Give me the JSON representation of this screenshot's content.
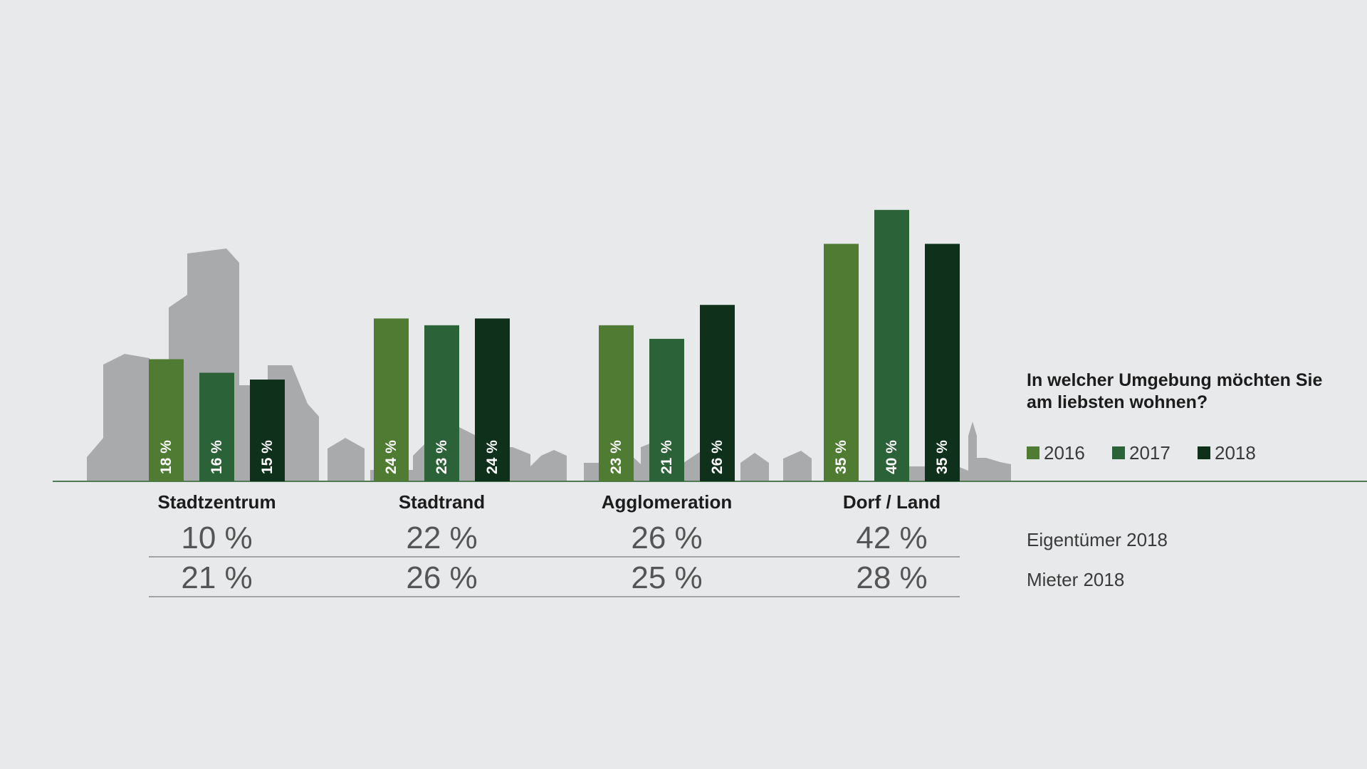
{
  "chart_data": {
    "type": "bar",
    "question": [
      "In welcher Umgebung möchten Sie",
      "am liebsten wohnen?"
    ],
    "categories": [
      "Stadtzentrum",
      "Stadtrand",
      "Agglomeration",
      "Dorf / Land"
    ],
    "series": [
      {
        "name": "2016",
        "color": "#4f7b33",
        "values": [
          18,
          24,
          23,
          35
        ],
        "labels": [
          "18 %",
          "24 %",
          "23 %",
          "35 %"
        ]
      },
      {
        "name": "2017",
        "color": "#2b6238",
        "values": [
          16,
          23,
          21,
          40
        ],
        "labels": [
          "16 %",
          "23 %",
          "21 %",
          "40 %"
        ]
      },
      {
        "name": "2018",
        "color": "#0f311b",
        "values": [
          15,
          24,
          26,
          35
        ],
        "labels": [
          "15 %",
          "24 %",
          "26 %",
          "35 %"
        ]
      }
    ],
    "ylim": [
      0,
      40
    ],
    "grid": false,
    "legend_position": "right",
    "rows": [
      {
        "label": "Eigentümer 2018",
        "values": [
          "10 %",
          "22 %",
          "26 %",
          "42 %"
        ]
      },
      {
        "label": "Mieter 2018",
        "values": [
          "21 %",
          "26 %",
          "25 %",
          "28 %"
        ]
      }
    ],
    "colors": {
      "background": "#e8e9ea",
      "baseline": "#4f7b52",
      "skyline": "#a8aaac",
      "divider": "#8c8c8c"
    }
  }
}
